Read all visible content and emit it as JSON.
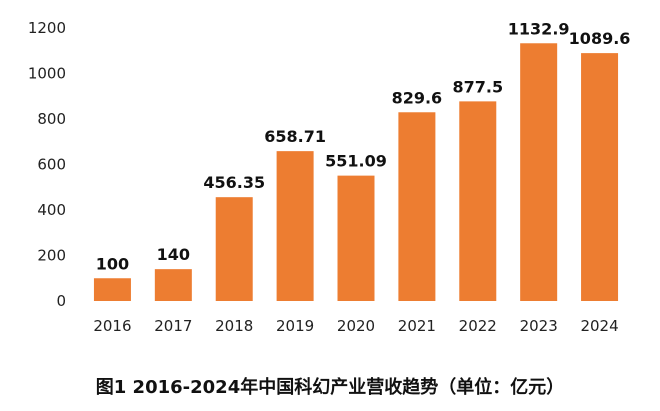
{
  "chart_data": {
    "type": "bar",
    "title": "图1 2016-2024年中国科幻产业营收趋势（单位：亿元）",
    "categories": [
      "2016",
      "2017",
      "2018",
      "2019",
      "2020",
      "2021",
      "2022",
      "2023",
      "2024"
    ],
    "values": [
      100,
      140,
      456.35,
      658.71,
      551.09,
      829.6,
      877.5,
      1132.9,
      1089.6
    ],
    "value_labels": [
      "100",
      "140",
      "456.35",
      "658.71",
      "551.09",
      "829.6",
      "877.5",
      "1132.9",
      "1089.6"
    ],
    "yticks": [
      0,
      200,
      400,
      600,
      800,
      1000,
      1200
    ],
    "ylim": [
      0,
      1200
    ],
    "xlabel": "",
    "ylabel": "",
    "grid": false,
    "bar_color": "#ED7D31"
  }
}
